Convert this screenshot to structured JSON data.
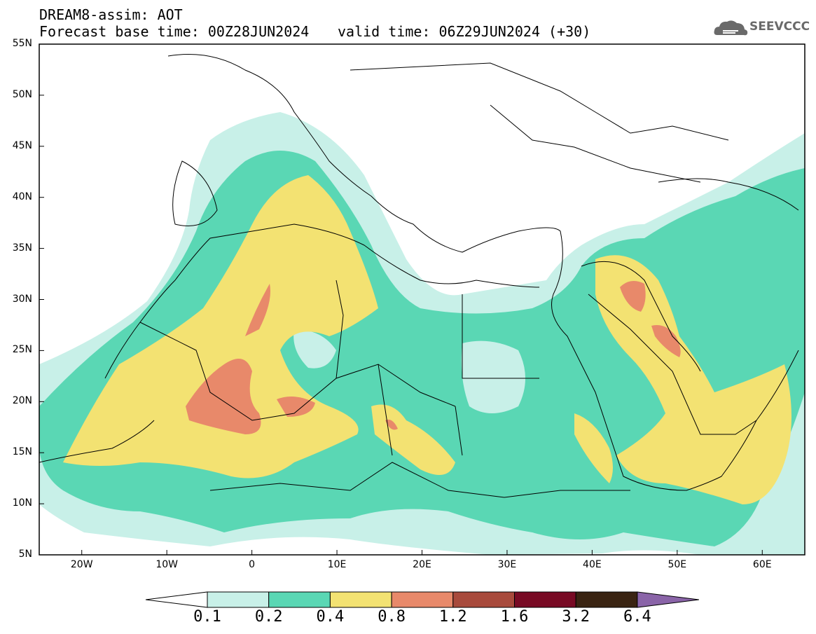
{
  "header": {
    "line1": "DREAM8-assim: AOT",
    "line2": "Forecast base time: 00Z28JUN2024",
    "valid": "valid time: 06Z29JUN2024 (+30)",
    "logo_text": "SEEVCCC",
    "logo_icon": "cloud-logo-icon"
  },
  "map": {
    "lon_min": -25,
    "lon_max": 65,
    "lat_min": 5,
    "lat_max": 55,
    "lat_ticks": [
      "55N",
      "50N",
      "45N",
      "40N",
      "35N",
      "30N",
      "25N",
      "20N",
      "15N",
      "10N",
      "5N"
    ],
    "lon_ticks": [
      "20W",
      "10W",
      "0",
      "10E",
      "20E",
      "30E",
      "40E",
      "50E",
      "60E"
    ]
  },
  "colorbar": {
    "labels": [
      "0.1",
      "0.2",
      "0.4",
      "0.8",
      "1.2",
      "1.6",
      "3.2",
      "6.4"
    ],
    "colors": [
      "#ffffff",
      "#c8f0e8",
      "#5ad7b4",
      "#f3e272",
      "#e8896a",
      "#a84a3c",
      "#780a24",
      "#3a2412",
      "#8a64a8"
    ]
  }
}
